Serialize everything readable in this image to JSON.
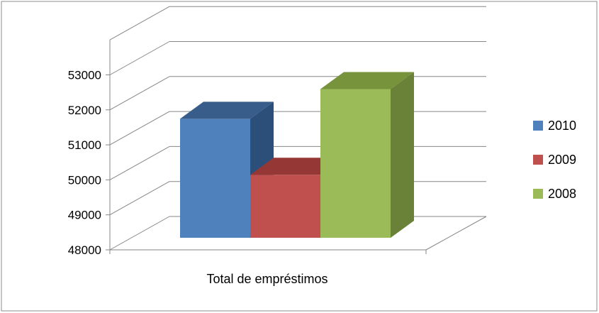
{
  "chart_data": {
    "type": "bar",
    "categories": [
      "Total de empréstimos"
    ],
    "series": [
      {
        "name": "2010",
        "values": [
          51400
        ],
        "color": "#4F81BD",
        "top_color": "#385D8A",
        "side_color": "#2C4F7A"
      },
      {
        "name": "2009",
        "values": [
          49800
        ],
        "color": "#C0504D",
        "top_color": "#953735",
        "side_color": "#8C3836"
      },
      {
        "name": "2008",
        "values": [
          52250
        ],
        "color": "#9BBB59",
        "top_color": "#77933C",
        "side_color": "#6A8237"
      }
    ],
    "y_ticks": [
      "48000",
      "49000",
      "50000",
      "51000",
      "52000",
      "53000"
    ],
    "ylim": [
      48000,
      53000
    ],
    "three_d": true,
    "grid": true,
    "legend": "right",
    "title": "",
    "xlabel": "",
    "ylabel": ""
  }
}
